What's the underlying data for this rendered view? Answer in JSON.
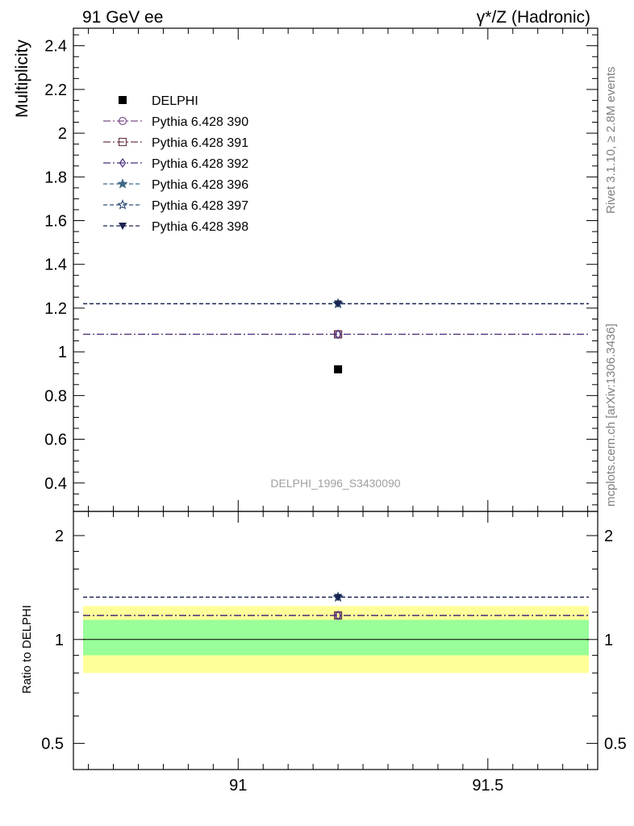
{
  "header": {
    "left": "91 GeV ee",
    "right": "γ*/Z (Hadronic)"
  },
  "side": {
    "rivet": "Rivet 3.1.10, ≥ 2.8M events",
    "mcplots": "mcplots.cern.ch [arXiv:1306.3436]"
  },
  "watermark": "DELPHI_1996_S3430090",
  "colors": {
    "data": "#000000",
    "p390": "#7a4f8a",
    "p391": "#6b3a4e",
    "p392": "#4a2f7f",
    "p396": "#3e6a86",
    "p397": "#2f4f73",
    "p398": "#1c2350",
    "band_inner": "#99ff99",
    "band_outer": "#ffff99"
  },
  "chart_data": [
    {
      "type": "scatter",
      "ylabel": "Multiplicity",
      "ylim": [
        0.27,
        2.48
      ],
      "xlim": [
        90.67,
        91.72
      ],
      "yticks": [
        "0.4",
        "0.6",
        "0.8",
        "1",
        "1.2",
        "1.4",
        "1.6",
        "1.8",
        "2",
        "2.2",
        "2.4"
      ],
      "legend_position": "top-left",
      "series": [
        {
          "name": "DELPHI",
          "marker": "square-filled",
          "line": "none",
          "x": [
            91.2
          ],
          "y": [
            0.92
          ]
        },
        {
          "name": "Pythia 6.428 390",
          "marker": "circle-open",
          "line": "dash-dot",
          "x": [
            91.2
          ],
          "y": [
            1.08
          ]
        },
        {
          "name": "Pythia 6.428 391",
          "marker": "square-open",
          "line": "dash-dot",
          "x": [
            91.2
          ],
          "y": [
            1.08
          ]
        },
        {
          "name": "Pythia 6.428 392",
          "marker": "diamond-open",
          "line": "dash-dot",
          "x": [
            91.2
          ],
          "y": [
            1.08
          ]
        },
        {
          "name": "Pythia 6.428 396",
          "marker": "star-filled",
          "line": "dashed",
          "x": [
            91.2
          ],
          "y": [
            1.22
          ]
        },
        {
          "name": "Pythia 6.428 397",
          "marker": "star-open",
          "line": "dashed",
          "x": [
            91.2
          ],
          "y": [
            1.22
          ]
        },
        {
          "name": "Pythia 6.428 398",
          "marker": "triangle-down-filled",
          "line": "dashed",
          "x": [
            91.2
          ],
          "y": [
            1.22
          ]
        }
      ]
    },
    {
      "type": "scatter",
      "ylabel": "Ratio to DELPHI",
      "yscale": "log",
      "ylim": [
        0.42,
        2.35
      ],
      "xlim": [
        90.67,
        91.72
      ],
      "yticks": [
        "0.5",
        "1",
        "2"
      ],
      "xticks": [
        "91",
        "91.5"
      ],
      "bands": {
        "inner": [
          0.9,
          1.14
        ],
        "outer": [
          0.8,
          1.25
        ]
      },
      "series": [
        {
          "name": "Pythia 6.428 390",
          "x": [
            91.2
          ],
          "y": [
            1.174
          ]
        },
        {
          "name": "Pythia 6.428 391",
          "x": [
            91.2
          ],
          "y": [
            1.174
          ]
        },
        {
          "name": "Pythia 6.428 392",
          "x": [
            91.2
          ],
          "y": [
            1.174
          ]
        },
        {
          "name": "Pythia 6.428 396",
          "x": [
            91.2
          ],
          "y": [
            1.326
          ]
        },
        {
          "name": "Pythia 6.428 397",
          "x": [
            91.2
          ],
          "y": [
            1.326
          ]
        },
        {
          "name": "Pythia 6.428 398",
          "x": [
            91.2
          ],
          "y": [
            1.326
          ]
        }
      ]
    }
  ]
}
